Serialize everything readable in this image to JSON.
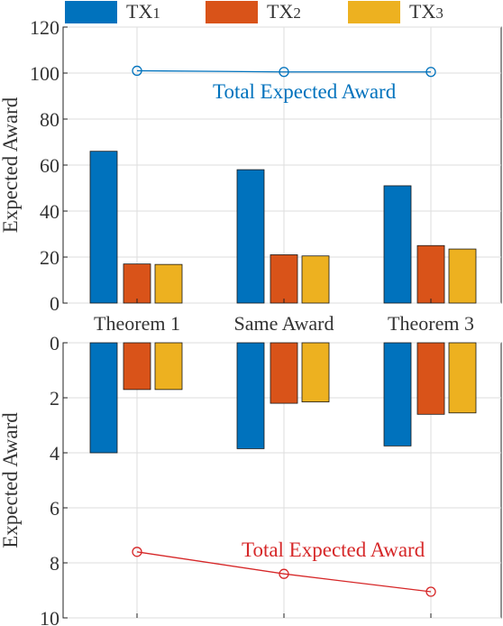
{
  "chart_data": [
    {
      "type": "bar",
      "categories": [
        "Theorem 1",
        "Same Award",
        "Theorem 3"
      ],
      "ylabel": "Expected Award",
      "ylim": [
        0,
        120
      ],
      "yticks": [
        0,
        20,
        40,
        60,
        80,
        100,
        120
      ],
      "grid": true,
      "series": [
        {
          "name": "TX1",
          "color": "#0072BD",
          "values": [
            66,
            58,
            51
          ]
        },
        {
          "name": "TX2",
          "color": "#D95319",
          "values": [
            17,
            21,
            25
          ]
        },
        {
          "name": "TX3",
          "color": "#EDB120",
          "values": [
            16.8,
            20.5,
            23.5
          ]
        }
      ],
      "line": {
        "name": "Total Expected Award",
        "color": "#0072BD",
        "values": [
          101,
          100.5,
          100.5
        ]
      }
    },
    {
      "type": "bar",
      "categories": [
        "Theorem 1",
        "Same Award",
        "Theorem 3"
      ],
      "ylabel": "Expected Award",
      "ylim": [
        0,
        10
      ],
      "yticks": [
        0,
        2,
        4,
        6,
        8,
        10
      ],
      "y_reversed": true,
      "grid": true,
      "series": [
        {
          "name": "TX1",
          "color": "#0072BD",
          "values": [
            4.0,
            3.85,
            3.75
          ]
        },
        {
          "name": "TX2",
          "color": "#D95319",
          "values": [
            1.7,
            2.2,
            2.6
          ]
        },
        {
          "name": "TX3",
          "color": "#EDB120",
          "values": [
            1.7,
            2.15,
            2.55
          ]
        }
      ],
      "line": {
        "name": "Total Expected Award",
        "color": "#D62728",
        "values": [
          7.6,
          8.4,
          9.05
        ]
      }
    }
  ],
  "legend": {
    "placement": "top",
    "items": [
      {
        "label": "TX1",
        "color": "#0072BD"
      },
      {
        "label": "TX2",
        "color": "#D95319"
      },
      {
        "label": "TX3",
        "color": "#EDB120"
      }
    ]
  }
}
